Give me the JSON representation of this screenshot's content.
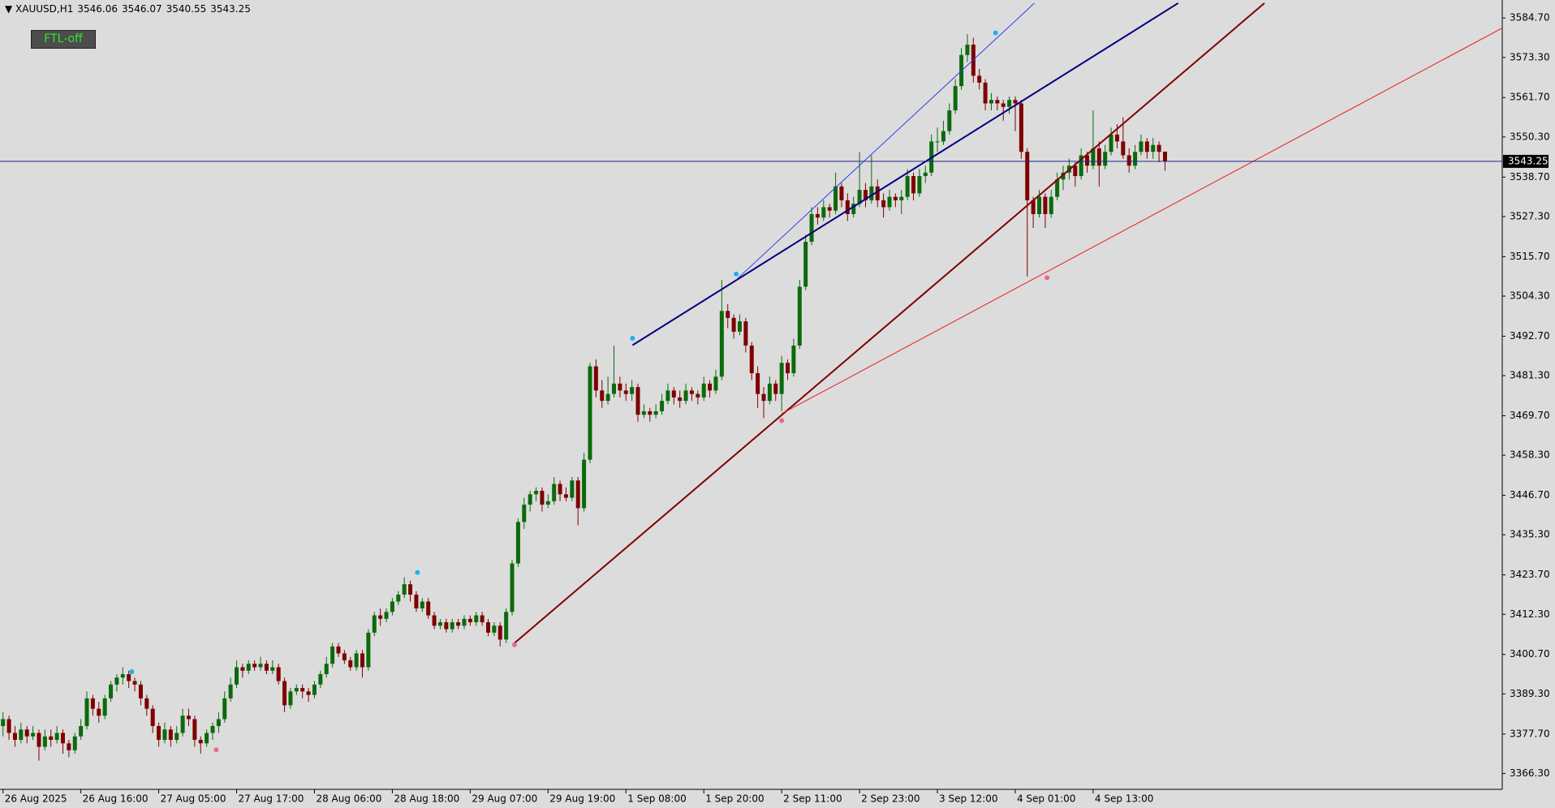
{
  "chart_data": {
    "type": "candlestick",
    "symbol": "XAUUSD,H1",
    "button": "FTL-off",
    "up_color": "#0b6a0b",
    "down_color": "#7e0000",
    "xlim": [
      -0.5,
      250.3
    ],
    "ylim": [
      3361.7,
      3589.9
    ],
    "xticks": [
      {
        "value": 0,
        "label": "26 Aug 2025"
      },
      {
        "value": 13,
        "label": "26 Aug 16:00"
      },
      {
        "value": 26,
        "label": "27 Aug 05:00"
      },
      {
        "value": 39,
        "label": "27 Aug 17:00"
      },
      {
        "value": 52,
        "label": "28 Aug 06:00"
      },
      {
        "value": 65,
        "label": "28 Aug 18:00"
      },
      {
        "value": 78,
        "label": "29 Aug 07:00"
      },
      {
        "value": 91,
        "label": "29 Aug 19:00"
      },
      {
        "value": 104,
        "label": "1 Sep 08:00"
      },
      {
        "value": 117,
        "label": "1 Sep 20:00"
      },
      {
        "value": 130,
        "label": "2 Sep 11:00"
      },
      {
        "value": 143,
        "label": "2 Sep 23:00"
      },
      {
        "value": 156,
        "label": "3 Sep 12:00"
      },
      {
        "value": 169,
        "label": "4 Sep 01:00"
      },
      {
        "value": 182,
        "label": "4 Sep 13:00"
      }
    ],
    "yticks": [
      {
        "value": 3584.7,
        "label": "3584.70"
      },
      {
        "value": 3573.3,
        "label": "3573.30"
      },
      {
        "value": 3561.7,
        "label": "3561.70"
      },
      {
        "value": 3550.3,
        "label": "3550.30"
      },
      {
        "value": 3538.7,
        "label": "3538.70"
      },
      {
        "value": 3527.3,
        "label": "3527.30"
      },
      {
        "value": 3515.7,
        "label": "3515.70"
      },
      {
        "value": 3504.3,
        "label": "3504.30"
      },
      {
        "value": 3492.7,
        "label": "3492.70"
      },
      {
        "value": 3481.3,
        "label": "3481.30"
      },
      {
        "value": 3469.7,
        "label": "3469.70"
      },
      {
        "value": 3458.3,
        "label": "3458.30"
      },
      {
        "value": 3446.7,
        "label": "3446.70"
      },
      {
        "value": 3435.3,
        "label": "3435.30"
      },
      {
        "value": 3423.7,
        "label": "3423.70"
      },
      {
        "value": 3412.3,
        "label": "3412.30"
      },
      {
        "value": 3400.7,
        "label": "3400.70"
      },
      {
        "value": 3389.3,
        "label": "3389.30"
      },
      {
        "value": 3377.7,
        "label": "3377.70"
      },
      {
        "value": 3366.3,
        "label": "3366.30"
      }
    ],
    "ohlc": [
      [
        3380,
        3384,
        3377,
        3382
      ],
      [
        3382,
        3383,
        3376,
        3378
      ],
      [
        3378,
        3380,
        3374,
        3376
      ],
      [
        3376,
        3381,
        3375,
        3379
      ],
      [
        3379,
        3380,
        3375,
        3377
      ],
      [
        3377,
        3380,
        3376,
        3378
      ],
      [
        3378,
        3379,
        3370,
        3374
      ],
      [
        3374,
        3379,
        3373,
        3377
      ],
      [
        3377,
        3379,
        3374,
        3376
      ],
      [
        3376,
        3380,
        3375,
        3378
      ],
      [
        3378,
        3379,
        3372,
        3375
      ],
      [
        3375,
        3376,
        3371,
        3373
      ],
      [
        3373,
        3378,
        3372,
        3377
      ],
      [
        3377,
        3382,
        3376,
        3380
      ],
      [
        3380,
        3390,
        3379,
        3388
      ],
      [
        3388,
        3389,
        3383,
        3385
      ],
      [
        3385,
        3387,
        3381,
        3383
      ],
      [
        3383,
        3389,
        3382,
        3388
      ],
      [
        3388,
        3393,
        3387,
        3392
      ],
      [
        3392,
        3395,
        3390,
        3394
      ],
      [
        3394,
        3397,
        3392,
        3395
      ],
      [
        3395,
        3396,
        3391,
        3393
      ],
      [
        3393,
        3394,
        3390,
        3392
      ],
      [
        3392,
        3393,
        3386,
        3388
      ],
      [
        3388,
        3389,
        3383,
        3385
      ],
      [
        3385,
        3386,
        3378,
        3380
      ],
      [
        3380,
        3381,
        3374,
        3376
      ],
      [
        3376,
        3381,
        3375,
        3379
      ],
      [
        3379,
        3380,
        3374,
        3376
      ],
      [
        3376,
        3380,
        3375,
        3378
      ],
      [
        3378,
        3385,
        3377,
        3383
      ],
      [
        3383,
        3385,
        3380,
        3382
      ],
      [
        3382,
        3383,
        3374,
        3376
      ],
      [
        3376,
        3377,
        3372,
        3375
      ],
      [
        3375,
        3379,
        3374,
        3378
      ],
      [
        3378,
        3381,
        3376,
        3380
      ],
      [
        3380,
        3384,
        3378,
        3382
      ],
      [
        3382,
        3390,
        3381,
        3388
      ],
      [
        3388,
        3394,
        3387,
        3392
      ],
      [
        3392,
        3399,
        3391,
        3397
      ],
      [
        3397,
        3398,
        3394,
        3396
      ],
      [
        3396,
        3399,
        3395,
        3398
      ],
      [
        3398,
        3399,
        3396,
        3397
      ],
      [
        3397,
        3400,
        3396,
        3398
      ],
      [
        3398,
        3399,
        3395,
        3396
      ],
      [
        3396,
        3399,
        3395,
        3397
      ],
      [
        3397,
        3398,
        3392,
        3393
      ],
      [
        3393,
        3394,
        3384,
        3386
      ],
      [
        3386,
        3391,
        3385,
        3390
      ],
      [
        3390,
        3392,
        3389,
        3391
      ],
      [
        3391,
        3392,
        3388,
        3390
      ],
      [
        3390,
        3391,
        3387,
        3389
      ],
      [
        3389,
        3393,
        3388,
        3392
      ],
      [
        3392,
        3396,
        3391,
        3395
      ],
      [
        3395,
        3400,
        3394,
        3398
      ],
      [
        3398,
        3404,
        3397,
        3403
      ],
      [
        3403,
        3404,
        3400,
        3401
      ],
      [
        3401,
        3402,
        3398,
        3399
      ],
      [
        3399,
        3400,
        3396,
        3397
      ],
      [
        3397,
        3402,
        3396,
        3401
      ],
      [
        3401,
        3402,
        3394,
        3397
      ],
      [
        3397,
        3408,
        3396,
        3407
      ],
      [
        3407,
        3413,
        3406,
        3412
      ],
      [
        3412,
        3414,
        3409,
        3411
      ],
      [
        3411,
        3414,
        3410,
        3413
      ],
      [
        3413,
        3417,
        3412,
        3416
      ],
      [
        3416,
        3419,
        3415,
        3418
      ],
      [
        3418,
        3423,
        3417,
        3421
      ],
      [
        3421,
        3422,
        3416,
        3418
      ],
      [
        3418,
        3419,
        3413,
        3414
      ],
      [
        3414,
        3417,
        3413,
        3416
      ],
      [
        3416,
        3417,
        3411,
        3412
      ],
      [
        3412,
        3413,
        3408,
        3409
      ],
      [
        3409,
        3411,
        3408,
        3410
      ],
      [
        3410,
        3411,
        3407,
        3408
      ],
      [
        3408,
        3411,
        3407,
        3410
      ],
      [
        3410,
        3411,
        3408,
        3409
      ],
      [
        3409,
        3412,
        3408,
        3411
      ],
      [
        3411,
        3412,
        3409,
        3410
      ],
      [
        3410,
        3413,
        3409,
        3412
      ],
      [
        3412,
        3413,
        3409,
        3410
      ],
      [
        3410,
        3411,
        3406,
        3407
      ],
      [
        3407,
        3410,
        3406,
        3409
      ],
      [
        3409,
        3410,
        3403,
        3405
      ],
      [
        3405,
        3414,
        3404,
        3413
      ],
      [
        3413,
        3428,
        3412,
        3427
      ],
      [
        3427,
        3440,
        3426,
        3439
      ],
      [
        3439,
        3446,
        3437,
        3444
      ],
      [
        3444,
        3448,
        3442,
        3447
      ],
      [
        3447,
        3449,
        3445,
        3448
      ],
      [
        3448,
        3449,
        3442,
        3444
      ],
      [
        3444,
        3447,
        3443,
        3445
      ],
      [
        3445,
        3452,
        3444,
        3450
      ],
      [
        3450,
        3451,
        3445,
        3447
      ],
      [
        3447,
        3449,
        3445,
        3446
      ],
      [
        3446,
        3452,
        3445,
        3451
      ],
      [
        3451,
        3452,
        3438,
        3443
      ],
      [
        3443,
        3459,
        3442,
        3457
      ],
      [
        3457,
        3485,
        3456,
        3484
      ],
      [
        3484,
        3486,
        3475,
        3477
      ],
      [
        3477,
        3480,
        3472,
        3474
      ],
      [
        3474,
        3481,
        3473,
        3476
      ],
      [
        3476,
        3490,
        3475,
        3479
      ],
      [
        3479,
        3481,
        3475,
        3477
      ],
      [
        3477,
        3479,
        3474,
        3476
      ],
      [
        3476,
        3480,
        3474,
        3478
      ],
      [
        3478,
        3479,
        3468,
        3470
      ],
      [
        3470,
        3473,
        3469,
        3471
      ],
      [
        3471,
        3472,
        3468,
        3470
      ],
      [
        3470,
        3473,
        3469,
        3471
      ],
      [
        3471,
        3476,
        3470,
        3474
      ],
      [
        3474,
        3479,
        3473,
        3477
      ],
      [
        3477,
        3478,
        3473,
        3475
      ],
      [
        3475,
        3477,
        3472,
        3474
      ],
      [
        3474,
        3479,
        3473,
        3477
      ],
      [
        3477,
        3478,
        3474,
        3476
      ],
      [
        3476,
        3477,
        3473,
        3475
      ],
      [
        3475,
        3481,
        3474,
        3479
      ],
      [
        3479,
        3480,
        3475,
        3477
      ],
      [
        3477,
        3483,
        3476,
        3481
      ],
      [
        3481,
        3509,
        3480,
        3500
      ],
      [
        3500,
        3502,
        3495,
        3498
      ],
      [
        3498,
        3499,
        3492,
        3494
      ],
      [
        3494,
        3499,
        3493,
        3497
      ],
      [
        3497,
        3498,
        3488,
        3490
      ],
      [
        3490,
        3491,
        3480,
        3482
      ],
      [
        3482,
        3484,
        3472,
        3476
      ],
      [
        3476,
        3478,
        3469,
        3474
      ],
      [
        3474,
        3481,
        3473,
        3479
      ],
      [
        3479,
        3480,
        3474,
        3476
      ],
      [
        3476,
        3487,
        3471,
        3485
      ],
      [
        3485,
        3486,
        3480,
        3482
      ],
      [
        3482,
        3492,
        3481,
        3490
      ],
      [
        3490,
        3509,
        3489,
        3507
      ],
      [
        3507,
        3522,
        3506,
        3520
      ],
      [
        3520,
        3530,
        3519,
        3528
      ],
      [
        3528,
        3530,
        3525,
        3527
      ],
      [
        3527,
        3532,
        3526,
        3530
      ],
      [
        3530,
        3531,
        3527,
        3529
      ],
      [
        3529,
        3540,
        3528,
        3536
      ],
      [
        3536,
        3537,
        3530,
        3532
      ],
      [
        3532,
        3534,
        3526,
        3528
      ],
      [
        3528,
        3533,
        3527,
        3531
      ],
      [
        3531,
        3546,
        3530,
        3535
      ],
      [
        3535,
        3537,
        3530,
        3532
      ],
      [
        3532,
        3545,
        3531,
        3536
      ],
      [
        3536,
        3538,
        3530,
        3532
      ],
      [
        3532,
        3534,
        3527,
        3530
      ],
      [
        3530,
        3535,
        3529,
        3533
      ],
      [
        3533,
        3534,
        3530,
        3532
      ],
      [
        3532,
        3535,
        3528,
        3533
      ],
      [
        3533,
        3541,
        3532,
        3539
      ],
      [
        3539,
        3540,
        3532,
        3534
      ],
      [
        3534,
        3541,
        3533,
        3539
      ],
      [
        3539,
        3542,
        3537,
        3540
      ],
      [
        3540,
        3551,
        3539,
        3549
      ],
      [
        3549,
        3553,
        3546,
        3549
      ],
      [
        3549,
        3555,
        3548,
        3552
      ],
      [
        3552,
        3560,
        3551,
        3558
      ],
      [
        3558,
        3567,
        3557,
        3565
      ],
      [
        3565,
        3576,
        3564,
        3574
      ],
      [
        3574,
        3580,
        3572,
        3577
      ],
      [
        3577,
        3579,
        3566,
        3568
      ],
      [
        3568,
        3570,
        3564,
        3566
      ],
      [
        3566,
        3567,
        3558,
        3560
      ],
      [
        3560,
        3563,
        3558,
        3561
      ],
      [
        3561,
        3562,
        3558,
        3560
      ],
      [
        3560,
        3561,
        3555,
        3559
      ],
      [
        3559,
        3562,
        3557,
        3561
      ],
      [
        3561,
        3562,
        3552,
        3560
      ],
      [
        3560,
        3561,
        3544,
        3546
      ],
      [
        3546,
        3547,
        3510,
        3532
      ],
      [
        3532,
        3533,
        3524,
        3528
      ],
      [
        3528,
        3535,
        3527,
        3533
      ],
      [
        3533,
        3534,
        3524,
        3528
      ],
      [
        3528,
        3535,
        3527,
        3533
      ],
      [
        3533,
        3540,
        3532,
        3538
      ],
      [
        3538,
        3542,
        3535,
        3540
      ],
      [
        3540,
        3544,
        3538,
        3542
      ],
      [
        3542,
        3543,
        3536,
        3539
      ],
      [
        3539,
        3547,
        3538,
        3545
      ],
      [
        3545,
        3546,
        3540,
        3542
      ],
      [
        3542,
        3558,
        3541,
        3547
      ],
      [
        3547,
        3549,
        3536,
        3542
      ],
      [
        3542,
        3548,
        3541,
        3546
      ],
      [
        3546,
        3553,
        3545,
        3551
      ],
      [
        3551,
        3554,
        3547,
        3549
      ],
      [
        3549,
        3556,
        3544,
        3545
      ],
      [
        3545,
        3547,
        3540,
        3542
      ],
      [
        3542,
        3548,
        3541,
        3546
      ],
      [
        3546,
        3551,
        3545,
        3549
      ],
      [
        3549,
        3550,
        3544,
        3546
      ],
      [
        3546,
        3550,
        3544,
        3548
      ],
      [
        3548,
        3549,
        3543,
        3546
      ],
      [
        3546.06,
        3546.07,
        3540.55,
        3543.25
      ]
    ],
    "trendlines": [
      {
        "color": "#7e0000",
        "width": 2,
        "x": [
          85.4,
          210.6
        ],
        "values": [
          3404.0,
          3589.0
        ]
      },
      {
        "color": "#000080",
        "width": 2,
        "x": [
          105.1,
          196.2
        ],
        "values": [
          3490.1,
          3589.0
        ]
      },
      {
        "color": "#2a3ff0",
        "width": 1,
        "x": [
          122.4,
          172.2
        ],
        "values": [
          3509.0,
          3589.0
        ]
      },
      {
        "color": "#f01818",
        "width": 1,
        "x": [
          130.0,
          250.3
        ],
        "values": [
          3470.3,
          3581.8
        ]
      }
    ],
    "fractals": [
      {
        "color": "#19b4f0",
        "x": [
          21.5,
          69.2,
          105.1,
          122.4,
          165.7
        ],
        "values": [
          3395.7,
          3424.4,
          3492.1,
          3510.7,
          3580.4
        ]
      },
      {
        "color": "#e86a90",
        "x": [
          35.6,
          85.4,
          130.0,
          174.3
        ],
        "values": [
          3373.1,
          3403.5,
          3468.3,
          3509.6
        ]
      }
    ],
    "price_line_color": "#1c2a8c"
  }
}
